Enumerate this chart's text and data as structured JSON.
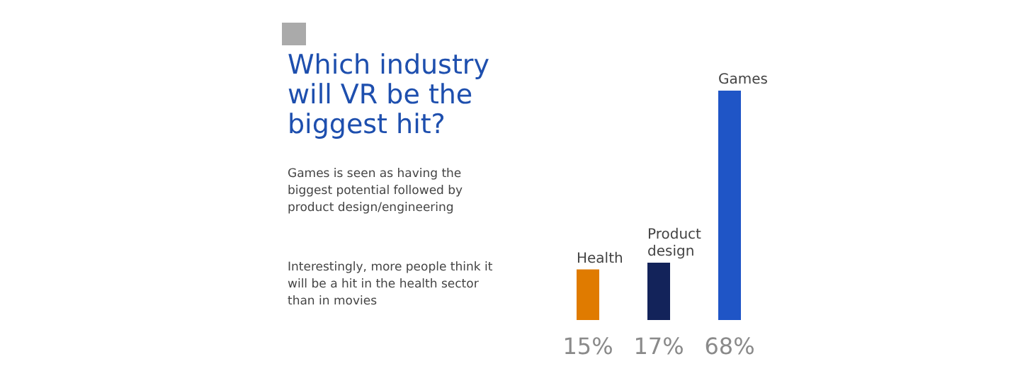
{
  "chart_data": {
    "type": "bar",
    "title": "Which industry will VR be the biggest hit?",
    "subtitle": "Games is seen as having the biggest potential followed by product design/engineering",
    "annotations": [
      "Interestingly, more people think it will be a hit in the health sector than in movies"
    ],
    "categories": [
      "Health",
      "Product design",
      "Games"
    ],
    "values": [
      15,
      17,
      68
    ],
    "colors": [
      "#e07b00",
      "#13235a",
      "#1f55c6"
    ],
    "value_labels": [
      "15%",
      "17%",
      "68%"
    ]
  }
}
